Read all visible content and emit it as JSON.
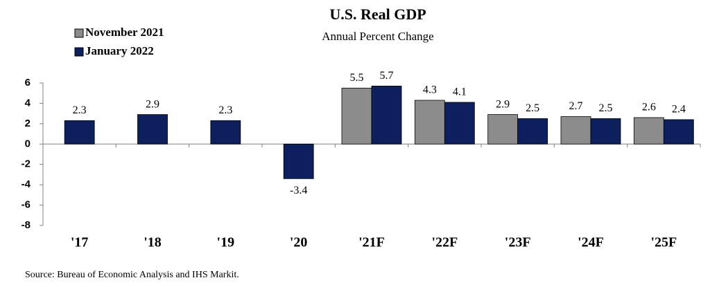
{
  "chart_data": {
    "type": "bar",
    "title": "U.S. Real GDP",
    "subtitle": "Annual Percent Change",
    "categories": [
      "'17",
      "'18",
      "'19",
      "'20",
      "'21F",
      "'22F",
      "'23F",
      "'24F",
      "'25F"
    ],
    "series": [
      {
        "name": "November 2021",
        "color": "#8c8c8c",
        "values": [
          null,
          null,
          null,
          null,
          5.5,
          4.3,
          2.9,
          2.7,
          2.6
        ]
      },
      {
        "name": "January 2022",
        "color": "#0d1f5c",
        "values": [
          2.3,
          2.9,
          2.3,
          -3.4,
          5.7,
          4.1,
          2.5,
          2.5,
          2.4
        ]
      }
    ],
    "ylim": [
      -8,
      6
    ],
    "yticks": [
      -8,
      -6,
      -4,
      -2,
      0,
      2,
      4,
      6
    ],
    "grid": false,
    "source": "Source:  Bureau of Economic Analysis and IHS Markit."
  }
}
